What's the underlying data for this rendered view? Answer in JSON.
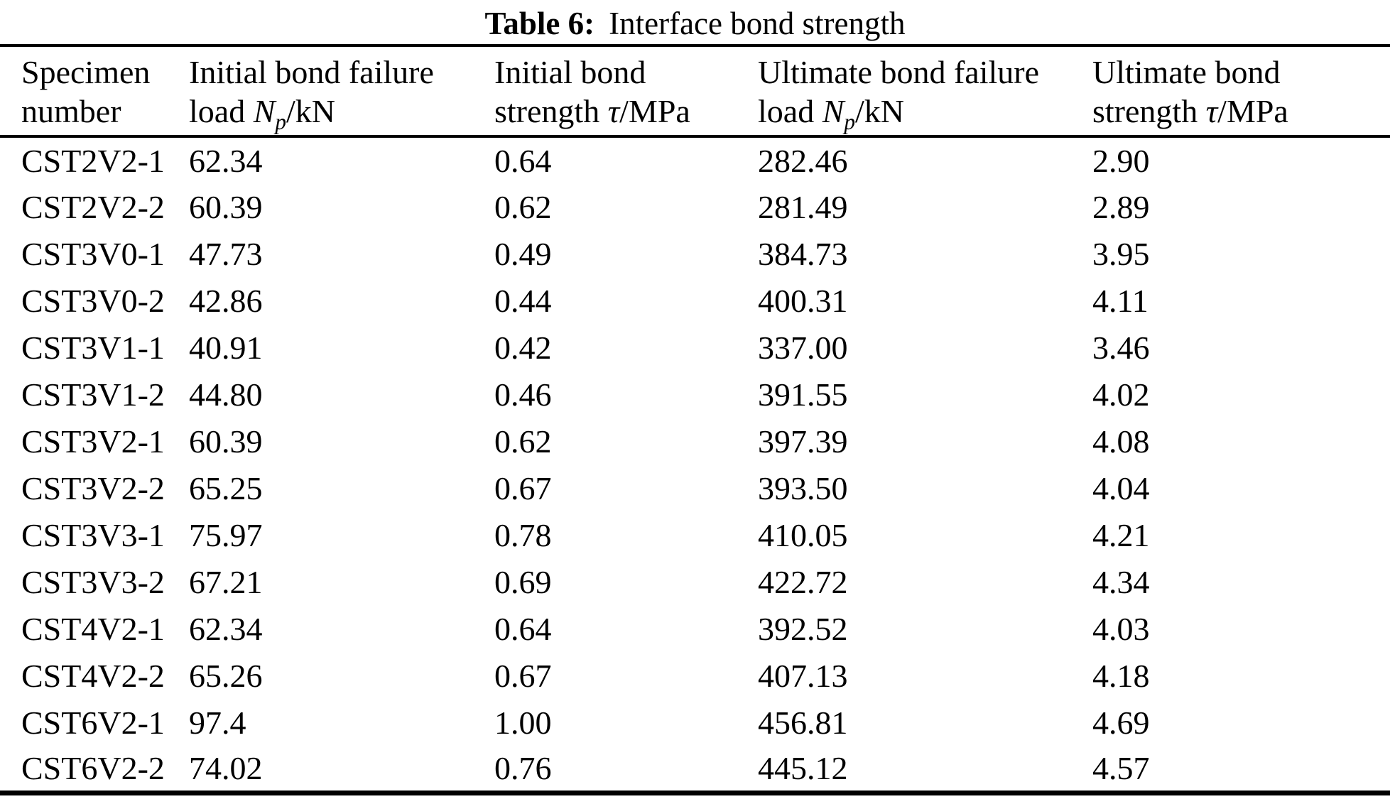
{
  "page": {
    "background": "#ffffff",
    "text_color": "#000000",
    "rule_color": "#000000"
  },
  "title": {
    "label": "Table 6:",
    "text": "Interface bond strength"
  },
  "table": {
    "columns": [
      {
        "id": "specimen-number",
        "line1": "Specimen",
        "line2_prefix": "number",
        "symbol": "",
        "subscript": "",
        "suffix": ""
      },
      {
        "id": "initial-bond-failure-load",
        "line1": "Initial bond failure",
        "line2_prefix": "load ",
        "symbol": "N",
        "subscript": "p",
        "suffix": "/kN"
      },
      {
        "id": "initial-bond-strength",
        "line1": "Initial bond",
        "line2_prefix": "strength ",
        "symbol": "τ",
        "subscript": "",
        "suffix": "/MPa"
      },
      {
        "id": "ultimate-bond-failure-load",
        "line1": "Ultimate bond failure",
        "line2_prefix": "load ",
        "symbol": "N",
        "subscript": "p",
        "suffix": "/kN"
      },
      {
        "id": "ultimate-bond-strength",
        "line1": "Ultimate bond",
        "line2_prefix": "strength ",
        "symbol": "τ",
        "subscript": "",
        "suffix": "/MPa"
      }
    ],
    "rows": [
      [
        "CST2V2-1",
        "62.34",
        "0.64",
        "282.46",
        "2.90"
      ],
      [
        "CST2V2-2",
        "60.39",
        "0.62",
        "281.49",
        "2.89"
      ],
      [
        "CST3V0-1",
        "47.73",
        "0.49",
        "384.73",
        "3.95"
      ],
      [
        "CST3V0-2",
        "42.86",
        "0.44",
        "400.31",
        "4.11"
      ],
      [
        "CST3V1-1",
        "40.91",
        "0.42",
        "337.00",
        "3.46"
      ],
      [
        "CST3V1-2",
        "44.80",
        "0.46",
        "391.55",
        "4.02"
      ],
      [
        "CST3V2-1",
        "60.39",
        "0.62",
        "397.39",
        "4.08"
      ],
      [
        "CST3V2-2",
        "65.25",
        "0.67",
        "393.50",
        "4.04"
      ],
      [
        "CST3V3-1",
        "75.97",
        "0.78",
        "410.05",
        "4.21"
      ],
      [
        "CST3V3-2",
        "67.21",
        "0.69",
        "422.72",
        "4.34"
      ],
      [
        "CST4V2-1",
        "62.34",
        "0.64",
        "392.52",
        "4.03"
      ],
      [
        "CST4V2-2",
        "65.26",
        "0.67",
        "407.13",
        "4.18"
      ],
      [
        "CST6V2-1",
        "97.4",
        "1.00",
        "456.81",
        "4.69"
      ],
      [
        "CST6V2-2",
        "74.02",
        "0.76",
        "445.12",
        "4.57"
      ]
    ]
  }
}
